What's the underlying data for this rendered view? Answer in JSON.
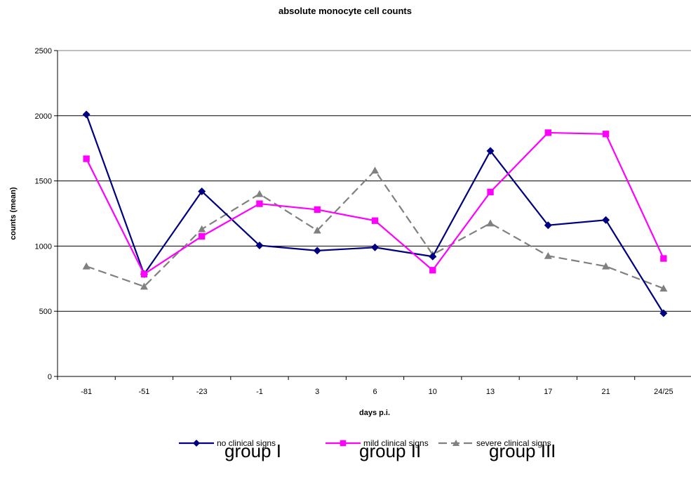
{
  "chart_data": {
    "type": "line",
    "title": "absolute monocyte cell counts",
    "xlabel": "days p.i.",
    "ylabel": "counts (mean)",
    "categories": [
      "-81",
      "-51",
      "-23",
      "-1",
      "3",
      "6",
      "10",
      "13",
      "17",
      "21",
      "24/25"
    ],
    "ylim": [
      0,
      2500
    ],
    "yticks": [
      0,
      500,
      1000,
      1500,
      2000,
      2500
    ],
    "grid": "horizontal",
    "legend_position": "bottom",
    "series": [
      {
        "name": "no clinical signs",
        "color": "#000080",
        "marker": "diamond",
        "dash": "solid",
        "values": [
          2010,
          785,
          1420,
          1005,
          965,
          990,
          920,
          1730,
          1160,
          1200,
          485
        ]
      },
      {
        "name": "mild clinical signs",
        "color": "#FF00FF",
        "marker": "square",
        "dash": "solid",
        "values": [
          1670,
          785,
          1075,
          1325,
          1280,
          1195,
          815,
          1415,
          1870,
          1860,
          905
        ]
      },
      {
        "name": "severe clinical signs",
        "color": "#808080",
        "marker": "triangle",
        "dash": "dashed",
        "values": [
          845,
          690,
          1130,
          1400,
          1120,
          1580,
          935,
          1175,
          925,
          845,
          675
        ]
      }
    ]
  },
  "group_labels": [
    "group I",
    "group II",
    "group III"
  ]
}
